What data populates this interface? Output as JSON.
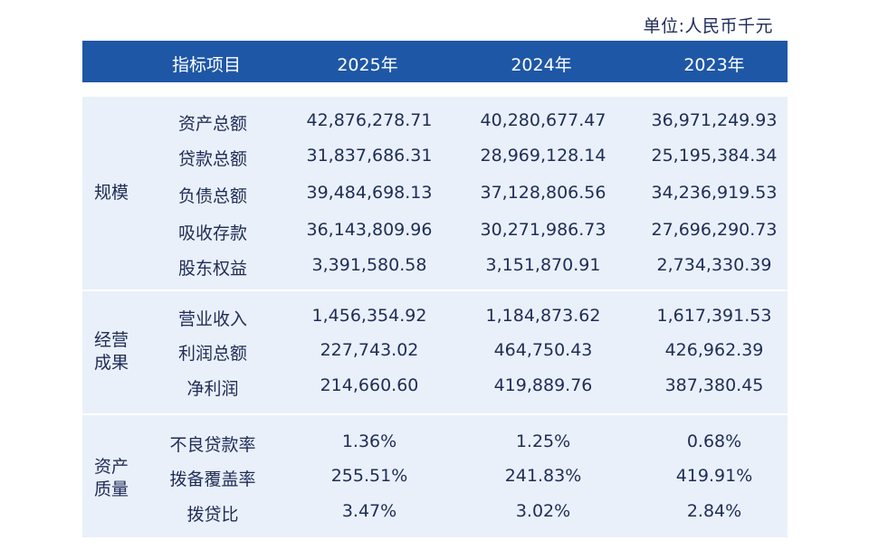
{
  "unit_label": "单位:人民币千元",
  "header": {
    "item": "指标项目",
    "y2025": "2025年",
    "y2024": "2024年",
    "y2023": "2023年"
  },
  "groups": [
    {
      "category": "规模",
      "rows": [
        {
          "name": "资产总额",
          "v2025": "42,876,278.71",
          "v2024": "40,280,677.47",
          "v2023": "36,971,249.93"
        },
        {
          "name": "贷款总额",
          "v2025": "31,837,686.31",
          "v2024": "28,969,128.14",
          "v2023": "25,195,384.34"
        },
        {
          "name": "负债总额",
          "v2025": "39,484,698.13",
          "v2024": "37,128,806.56",
          "v2023": "34,236,919.53"
        },
        {
          "name": "吸收存款",
          "v2025": "36,143,809.96",
          "v2024": "30,271,986.73",
          "v2023": "27,696,290.73"
        },
        {
          "name": "股东权益",
          "v2025": "3,391,580.58",
          "v2024": "3,151,870.91",
          "v2023": "2,734,330.39"
        }
      ]
    },
    {
      "category_line1": "经营",
      "category_line2": "成果",
      "rows": [
        {
          "name": "营业收入",
          "v2025": "1,456,354.92",
          "v2024": "1,184,873.62",
          "v2023": "1,617,391.53"
        },
        {
          "name": "利润总额",
          "v2025": "227,743.02",
          "v2024": "464,750.43",
          "v2023": "426,962.39"
        },
        {
          "name": "净利润",
          "v2025": "214,660.60",
          "v2024": "419,889.76",
          "v2023": "387,380.45"
        }
      ]
    },
    {
      "category_line1": "资产",
      "category_line2": "质量",
      "rows": [
        {
          "name": "不良贷款率",
          "v2025": "1.36%",
          "v2024": "1.25%",
          "v2023": "0.68%"
        },
        {
          "name": "拨备覆盖率",
          "v2025": "255.51%",
          "v2024": "241.83%",
          "v2023": "419.91%"
        },
        {
          "name": "拨贷比",
          "v2025": "3.47%",
          "v2024": "3.02%",
          "v2023": "2.84%"
        }
      ]
    }
  ],
  "colors": {
    "header_bg": "#1e57a6",
    "block_bg": "#e9f0f9",
    "text": "#1f2d57"
  }
}
